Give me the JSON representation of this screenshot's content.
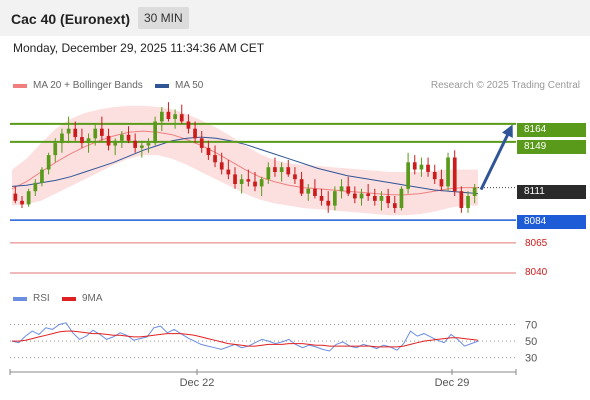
{
  "header": {
    "title": "Cac 40 (Euronext)",
    "interval": "30 MIN"
  },
  "datetime": "Monday, December 29, 2025 11:34:36 AM CET",
  "legend": {
    "ma20_label": "MA 20 + Bollinger Bands",
    "ma50_label": "MA 50",
    "credit": "Research © 2025 Trading Central",
    "rsi_label": "RSI",
    "rsi_ma_label": "9MA"
  },
  "colors": {
    "candle_up": "#5a9a1a",
    "candle_down": "#cc1b1b",
    "bollinger_fill": "#fbd4d4",
    "ma20": "#f08080",
    "ma50": "#2f5597",
    "resistance": "#5a9a1a",
    "support": "#1e5bd6",
    "target": "#cc1b1b",
    "arrow": "#2f5597",
    "rsi": "#6a8ee0",
    "rsi_ma": "#e02020"
  },
  "levels": {
    "r1": "8164",
    "r2": "8149",
    "last": "8111",
    "s1": "8084",
    "t1": "8065",
    "t2": "8040"
  },
  "x_ticks": [
    "Dec 22",
    "Dec 29"
  ],
  "rsi_ticks": [
    "70",
    "50",
    "30"
  ],
  "chart_data": {
    "type": "candlestick",
    "last_price": 8111,
    "ylim": [
      8030,
      8188
    ],
    "resistance": [
      8164,
      8149
    ],
    "support": [
      8084
    ],
    "targets": [
      8065,
      8040
    ],
    "ma50": [
      8112,
      8113,
      8115,
      8117,
      8120,
      8124,
      8128,
      8132,
      8137,
      8142,
      8146,
      8150,
      8152,
      8153,
      8152,
      8150,
      8147,
      8143,
      8139,
      8135,
      8131,
      8127,
      8124,
      8121,
      8119,
      8117,
      8115,
      8113,
      8111,
      8109,
      8108,
      8107,
      8106
    ],
    "ma20": [
      8110,
      8116,
      8124,
      8132,
      8139,
      8145,
      8150,
      8154,
      8157,
      8158,
      8157,
      8155,
      8151,
      8146,
      8140,
      8133,
      8126,
      8120,
      8116,
      8113,
      8111,
      8110,
      8109,
      8108,
      8107,
      8106,
      8105,
      8105,
      8106,
      8108,
      8110,
      8111,
      8111
    ],
    "bb_upper": [
      8126,
      8135,
      8148,
      8160,
      8168,
      8173,
      8176,
      8178,
      8179,
      8179,
      8178,
      8176,
      8172,
      8167,
      8161,
      8154,
      8146,
      8139,
      8134,
      8131,
      8130,
      8129,
      8128,
      8127,
      8126,
      8125,
      8124,
      8124,
      8124,
      8125,
      8126,
      8126,
      8126
    ],
    "bb_lower": [
      8096,
      8097,
      8100,
      8106,
      8112,
      8118,
      8124,
      8130,
      8135,
      8138,
      8138,
      8135,
      8130,
      8124,
      8118,
      8112,
      8106,
      8101,
      8098,
      8096,
      8094,
      8093,
      8092,
      8091,
      8090,
      8089,
      8088,
      8088,
      8089,
      8091,
      8094,
      8096,
      8096
    ],
    "ohlc": [
      [
        8106,
        8112,
        8098,
        8100
      ],
      [
        8100,
        8104,
        8094,
        8097
      ],
      [
        8097,
        8110,
        8095,
        8108
      ],
      [
        8108,
        8118,
        8104,
        8115
      ],
      [
        8115,
        8128,
        8112,
        8126
      ],
      [
        8126,
        8140,
        8122,
        8138
      ],
      [
        8138,
        8152,
        8132,
        8148
      ],
      [
        8148,
        8160,
        8140,
        8156
      ],
      [
        8156,
        8170,
        8148,
        8160
      ],
      [
        8160,
        8166,
        8150,
        8153
      ],
      [
        8153,
        8160,
        8144,
        8148
      ],
      [
        8148,
        8156,
        8140,
        8152
      ],
      [
        8152,
        8164,
        8146,
        8160
      ],
      [
        8160,
        8170,
        8150,
        8154
      ],
      [
        8154,
        8160,
        8142,
        8146
      ],
      [
        8146,
        8152,
        8138,
        8150
      ],
      [
        8150,
        8158,
        8144,
        8155
      ],
      [
        8155,
        8162,
        8148,
        8150
      ],
      [
        8150,
        8156,
        8140,
        8144
      ],
      [
        8144,
        8150,
        8136,
        8146
      ],
      [
        8146,
        8152,
        8140,
        8148
      ],
      [
        8148,
        8170,
        8146,
        8166
      ],
      [
        8166,
        8178,
        8158,
        8174
      ],
      [
        8174,
        8182,
        8166,
        8168
      ],
      [
        8168,
        8176,
        8160,
        8172
      ],
      [
        8172,
        8180,
        8164,
        8166
      ],
      [
        8166,
        8172,
        8156,
        8160
      ],
      [
        8160,
        8166,
        8148,
        8152
      ],
      [
        8152,
        8158,
        8140,
        8144
      ],
      [
        8144,
        8150,
        8134,
        8138
      ],
      [
        8138,
        8146,
        8128,
        8132
      ],
      [
        8132,
        8140,
        8122,
        8126
      ],
      [
        8126,
        8134,
        8118,
        8122
      ],
      [
        8122,
        8128,
        8110,
        8114
      ],
      [
        8114,
        8122,
        8106,
        8118
      ],
      [
        8118,
        8126,
        8112,
        8116
      ],
      [
        8116,
        8124,
        8108,
        8112
      ],
      [
        8112,
        8120,
        8104,
        8118
      ],
      [
        8118,
        8132,
        8114,
        8128
      ],
      [
        8128,
        8136,
        8120,
        8124
      ],
      [
        8124,
        8132,
        8116,
        8128
      ],
      [
        8128,
        8134,
        8120,
        8122
      ],
      [
        8122,
        8128,
        8114,
        8118
      ],
      [
        8118,
        8124,
        8104,
        8106
      ],
      [
        8106,
        8114,
        8100,
        8110
      ],
      [
        8110,
        8118,
        8102,
        8104
      ],
      [
        8104,
        8110,
        8096,
        8100
      ],
      [
        8100,
        8108,
        8090,
        8096
      ],
      [
        8096,
        8112,
        8092,
        8108
      ],
      [
        8108,
        8118,
        8102,
        8112
      ],
      [
        8112,
        8120,
        8104,
        8106
      ],
      [
        8106,
        8112,
        8098,
        8102
      ],
      [
        8102,
        8110,
        8096,
        8106
      ],
      [
        8106,
        8114,
        8100,
        8104
      ],
      [
        8104,
        8110,
        8096,
        8100
      ],
      [
        8100,
        8108,
        8092,
        8104
      ],
      [
        8104,
        8110,
        8094,
        8098
      ],
      [
        8098,
        8104,
        8090,
        8094
      ],
      [
        8094,
        8112,
        8092,
        8110
      ],
      [
        8110,
        8140,
        8106,
        8132
      ],
      [
        8132,
        8138,
        8122,
        8126
      ],
      [
        8126,
        8136,
        8120,
        8130
      ],
      [
        8130,
        8136,
        8120,
        8124
      ],
      [
        8124,
        8130,
        8114,
        8118
      ],
      [
        8118,
        8126,
        8108,
        8112
      ],
      [
        8112,
        8140,
        8108,
        8136
      ],
      [
        8136,
        8142,
        8104,
        8108
      ],
      [
        8108,
        8112,
        8090,
        8094
      ],
      [
        8094,
        8108,
        8090,
        8104
      ],
      [
        8104,
        8114,
        8098,
        8111
      ]
    ],
    "rsi": [
      50,
      48,
      56,
      62,
      58,
      66,
      64,
      70,
      72,
      60,
      52,
      56,
      63,
      58,
      52,
      55,
      60,
      57,
      51,
      53,
      55,
      66,
      68,
      60,
      64,
      59,
      54,
      50,
      46,
      44,
      42,
      40,
      43,
      46,
      42,
      44,
      48,
      52,
      50,
      47,
      49,
      52,
      46,
      42,
      45,
      43,
      40,
      38,
      46,
      49,
      44,
      42,
      46,
      44,
      41,
      45,
      43,
      39,
      47,
      62,
      56,
      59,
      55,
      51,
      48,
      58,
      52,
      44,
      47,
      50
    ],
    "rsi_ma": [
      50,
      50,
      51,
      53,
      55,
      57,
      59,
      61,
      62,
      62,
      61,
      60,
      59,
      59,
      58,
      57,
      57,
      56,
      55,
      55,
      56,
      57,
      58,
      59,
      59,
      59,
      58,
      57,
      55,
      53,
      51,
      49,
      47,
      46,
      45,
      44,
      44,
      45,
      46,
      46,
      46,
      47,
      47,
      47,
      46,
      45,
      45,
      44,
      44,
      44,
      44,
      44,
      44,
      44,
      43,
      43,
      43,
      43,
      44,
      46,
      48,
      50,
      51,
      52,
      53,
      54,
      54,
      53,
      52,
      51
    ],
    "rsi_ylim": [
      20,
      85
    ]
  }
}
